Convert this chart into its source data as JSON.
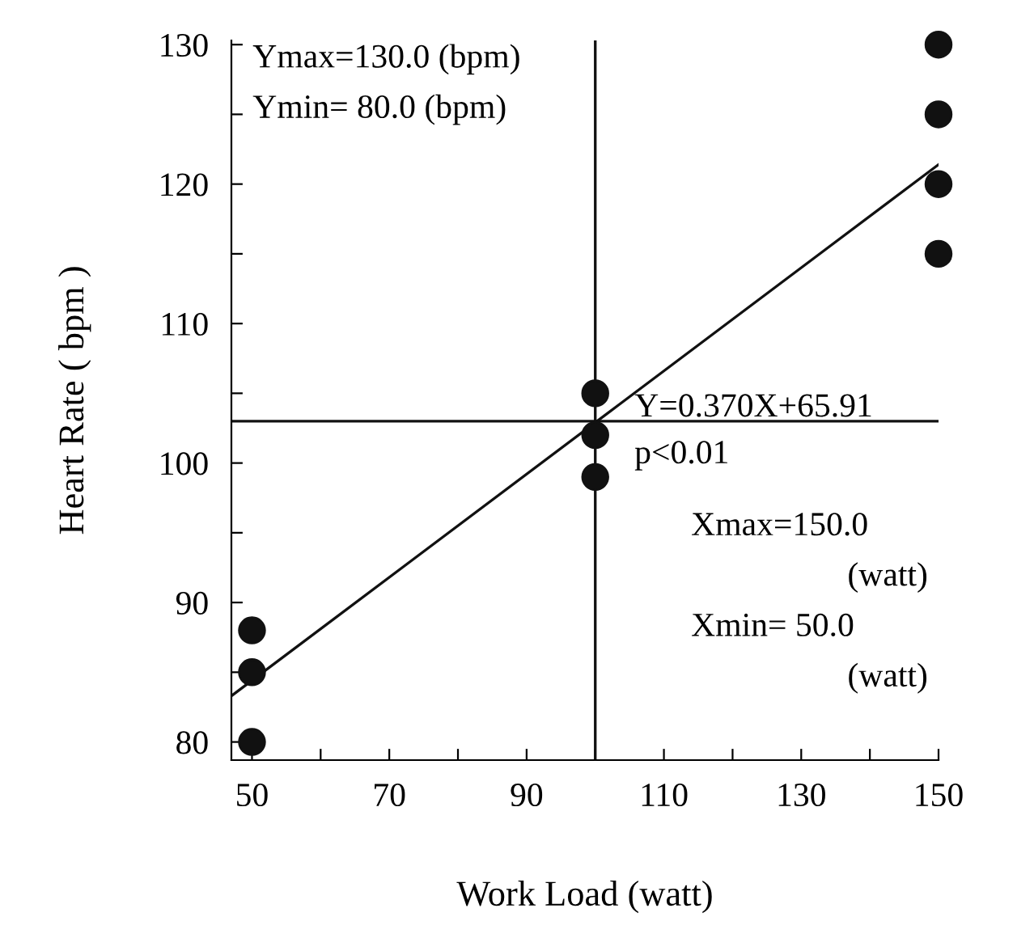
{
  "chart_data": {
    "type": "scatter",
    "xlabel": "Work Load (watt)",
    "ylabel": "Heart Rate ( bpm )",
    "xlim": [
      47,
      150
    ],
    "ylim": [
      78.7,
      130.3
    ],
    "xticks": [
      50,
      {
        "value": 60,
        "label": null
      },
      70,
      {
        "value": 80,
        "label": null
      },
      90,
      {
        "value": 100,
        "label": null
      },
      110,
      {
        "value": 120,
        "label": null
      },
      130,
      {
        "value": 140,
        "label": null
      },
      150
    ],
    "yticks": [
      80,
      {
        "value": 85,
        "label": null
      },
      90,
      {
        "value": 95,
        "label": null
      },
      100,
      {
        "value": 105,
        "label": null
      },
      110,
      {
        "value": 115,
        "label": null
      },
      120,
      {
        "value": 125,
        "label": null
      },
      130
    ],
    "marker": "circle",
    "grid": false,
    "legend": false,
    "series": [
      {
        "color": "#111111",
        "x": [
          50,
          50,
          50,
          100,
          100,
          100,
          150,
          150,
          150,
          150
        ],
        "values": [
          80,
          85,
          88,
          99,
          102,
          105,
          115,
          120,
          125,
          130
        ]
      },
      {
        "type": "line",
        "color": "#111111",
        "marker": "none",
        "x": [
          47,
          150
        ],
        "values": [
          83.3,
          121.4
        ]
      }
    ],
    "ref_lines": [
      {
        "axis": "x",
        "value": 100,
        "color": "#111111"
      },
      {
        "axis": "y",
        "value": 103,
        "color": "#111111"
      }
    ],
    "annotations": [
      "Ymax=130.0 (bpm)",
      "Ymin= 80.0 (bpm)",
      "Y=0.370X+65.91",
      "p<0.01",
      "Xmax=150.0",
      "(watt)",
      "Xmin= 50.0",
      "(watt)"
    ]
  }
}
